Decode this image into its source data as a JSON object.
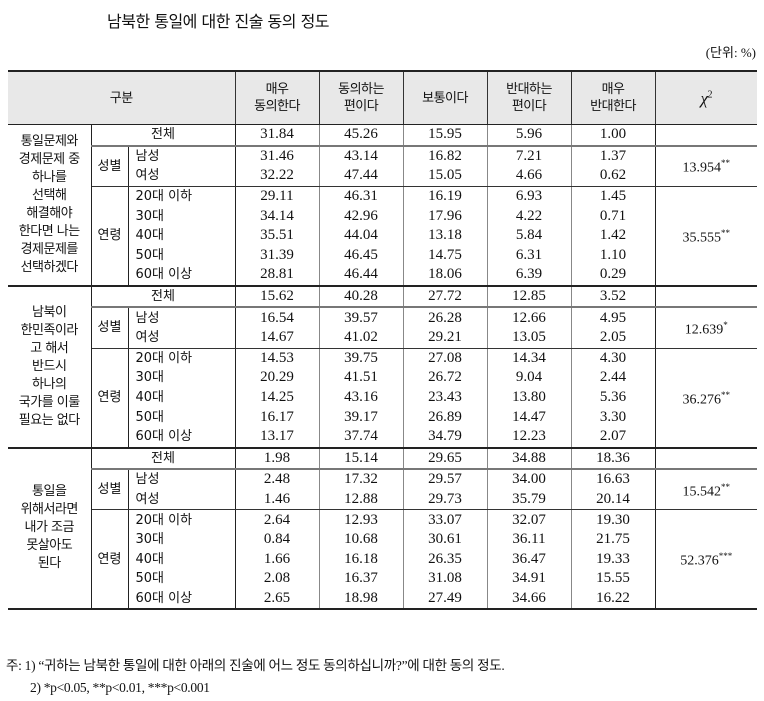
{
  "title": "남북한 통일에 대한 진술 동의 정도",
  "unit": "(단위: %)",
  "table": {
    "headers": {
      "category": "구분",
      "col1_line1": "매우",
      "col1_line2": "동의한다",
      "col2_line1": "동의하는",
      "col2_line2": "편이다",
      "col3": "보통이다",
      "col4_line1": "반대하는",
      "col4_line2": "편이다",
      "col5_line1": "매우",
      "col5_line2": "반대한다",
      "chi_symbol": "χ",
      "chi_sup": "2"
    },
    "labels": {
      "total": "전체",
      "gender": "성별",
      "age": "연령",
      "male": "남성",
      "female": "여성",
      "age20": "20대 이하",
      "age30": "30대",
      "age40": "40대",
      "age50": "50대",
      "age60": "60대 이상"
    },
    "blocks": [
      {
        "question": [
          "통일문제와",
          "경제문제 중",
          "하나를",
          "선택해",
          "해결해야",
          "한다면 나는",
          "경제문제를",
          "선택하겠다"
        ],
        "total": [
          "31.84",
          "45.26",
          "15.95",
          "5.96",
          "1.00"
        ],
        "male": [
          "31.46",
          "43.14",
          "16.82",
          "7.21",
          "1.37"
        ],
        "female": [
          "32.22",
          "47.44",
          "15.05",
          "4.66",
          "0.62"
        ],
        "gender_chi": "13.954",
        "gender_sig": "**",
        "age20": [
          "29.11",
          "46.31",
          "16.19",
          "6.93",
          "1.45"
        ],
        "age30": [
          "34.14",
          "42.96",
          "17.96",
          "4.22",
          "0.71"
        ],
        "age40": [
          "35.51",
          "44.04",
          "13.18",
          "5.84",
          "1.42"
        ],
        "age50": [
          "31.39",
          "46.45",
          "14.75",
          "6.31",
          "1.10"
        ],
        "age60": [
          "28.81",
          "46.44",
          "18.06",
          "6.39",
          "0.29"
        ],
        "age_chi": "35.555",
        "age_sig": "**"
      },
      {
        "question": [
          "남북이",
          "한민족이라",
          "고 해서",
          "반드시",
          "하나의",
          "국가를 이룰",
          "필요는 없다"
        ],
        "total": [
          "15.62",
          "40.28",
          "27.72",
          "12.85",
          "3.52"
        ],
        "male": [
          "16.54",
          "39.57",
          "26.28",
          "12.66",
          "4.95"
        ],
        "female": [
          "14.67",
          "41.02",
          "29.21",
          "13.05",
          "2.05"
        ],
        "gender_chi": "12.639",
        "gender_sig": "*",
        "age20": [
          "14.53",
          "39.75",
          "27.08",
          "14.34",
          "4.30"
        ],
        "age30": [
          "20.29",
          "41.51",
          "26.72",
          "9.04",
          "2.44"
        ],
        "age40": [
          "14.25",
          "43.16",
          "23.43",
          "13.80",
          "5.36"
        ],
        "age50": [
          "16.17",
          "39.17",
          "26.89",
          "14.47",
          "3.30"
        ],
        "age60": [
          "13.17",
          "37.74",
          "34.79",
          "12.23",
          "2.07"
        ],
        "age_chi": "36.276",
        "age_sig": "**"
      },
      {
        "question": [
          "통일을",
          "위해서라면",
          "내가 조금",
          "못살아도",
          "된다"
        ],
        "total": [
          "1.98",
          "15.14",
          "29.65",
          "34.88",
          "18.36"
        ],
        "male": [
          "2.48",
          "17.32",
          "29.57",
          "34.00",
          "16.63"
        ],
        "female": [
          "1.46",
          "12.88",
          "29.73",
          "35.79",
          "20.14"
        ],
        "gender_chi": "15.542",
        "gender_sig": "**",
        "age20": [
          "2.64",
          "12.93",
          "33.07",
          "32.07",
          "19.30"
        ],
        "age30": [
          "0.84",
          "10.68",
          "30.61",
          "36.11",
          "21.75"
        ],
        "age40": [
          "1.66",
          "16.18",
          "26.35",
          "36.47",
          "19.33"
        ],
        "age50": [
          "2.08",
          "16.37",
          "31.08",
          "34.91",
          "15.55"
        ],
        "age60": [
          "2.65",
          "18.98",
          "27.49",
          "34.66",
          "16.22"
        ],
        "age_chi": "52.376",
        "age_sig": "***"
      }
    ]
  },
  "notes": {
    "note1": "주: 1) “귀하는 남북한 통일에 대한 아래의 진술에 어느 정도 동의하십니까?”에 대한 동의 정도.",
    "note2": "2) *p<0.05, **p<0.01, ***p<0.001"
  }
}
